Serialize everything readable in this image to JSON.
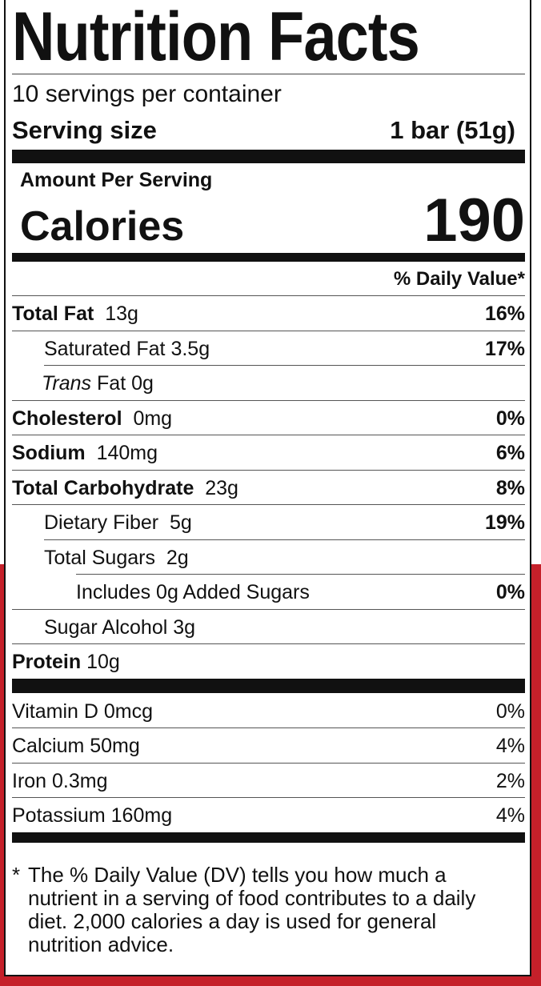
{
  "title": "Nutrition Facts",
  "servings_per_container": "10 servings per container",
  "serving_size": {
    "label": "Serving size",
    "value": "1 bar (51g)"
  },
  "amount_per_serving": "Amount Per Serving",
  "calories": {
    "label": "Calories",
    "value": "190"
  },
  "daily_value_header": "% Daily Value*",
  "nutrients": [
    {
      "name": "Total Fat",
      "amount": "13g",
      "dv": "16%"
    },
    {
      "name": "Saturated Fat",
      "amount": "3.5g",
      "dv": "17%"
    },
    {
      "name": "Trans",
      "name2": "Fat",
      "amount": "0g",
      "dv": ""
    },
    {
      "name": "Cholesterol",
      "amount": "0mg",
      "dv": "0%"
    },
    {
      "name": "Sodium",
      "amount": "140mg",
      "dv": "6%"
    },
    {
      "name": "Total Carbohydrate",
      "amount": "23g",
      "dv": "8%"
    },
    {
      "name": "Dietary Fiber",
      "amount": "5g",
      "dv": "19%"
    },
    {
      "name": "Total Sugars",
      "amount": "2g",
      "dv": ""
    },
    {
      "name": "Includes 0g Added Sugars",
      "amount": "",
      "dv": "0%"
    },
    {
      "name": "Sugar Alcohol",
      "amount": "3g",
      "dv": ""
    },
    {
      "name": "Protein",
      "amount": "10g",
      "dv": ""
    }
  ],
  "vitamins": [
    {
      "name": "Vitamin D 0mcg",
      "dv": "0%"
    },
    {
      "name": "Calcium 50mg",
      "dv": "4%"
    },
    {
      "name": "Iron 0.3mg",
      "dv": "2%"
    },
    {
      "name": "Potassium 160mg",
      "dv": "4%"
    }
  ],
  "footnote": {
    "star": "*",
    "text": "The % Daily Value (DV) tells you how much a nutrient in a serving of food contributes to a daily diet. 2,000 calories a day is used for general nutrition advice."
  },
  "colors": {
    "background_red": "#c5202a",
    "label_bg": "#ffffff",
    "ink": "#111111"
  }
}
